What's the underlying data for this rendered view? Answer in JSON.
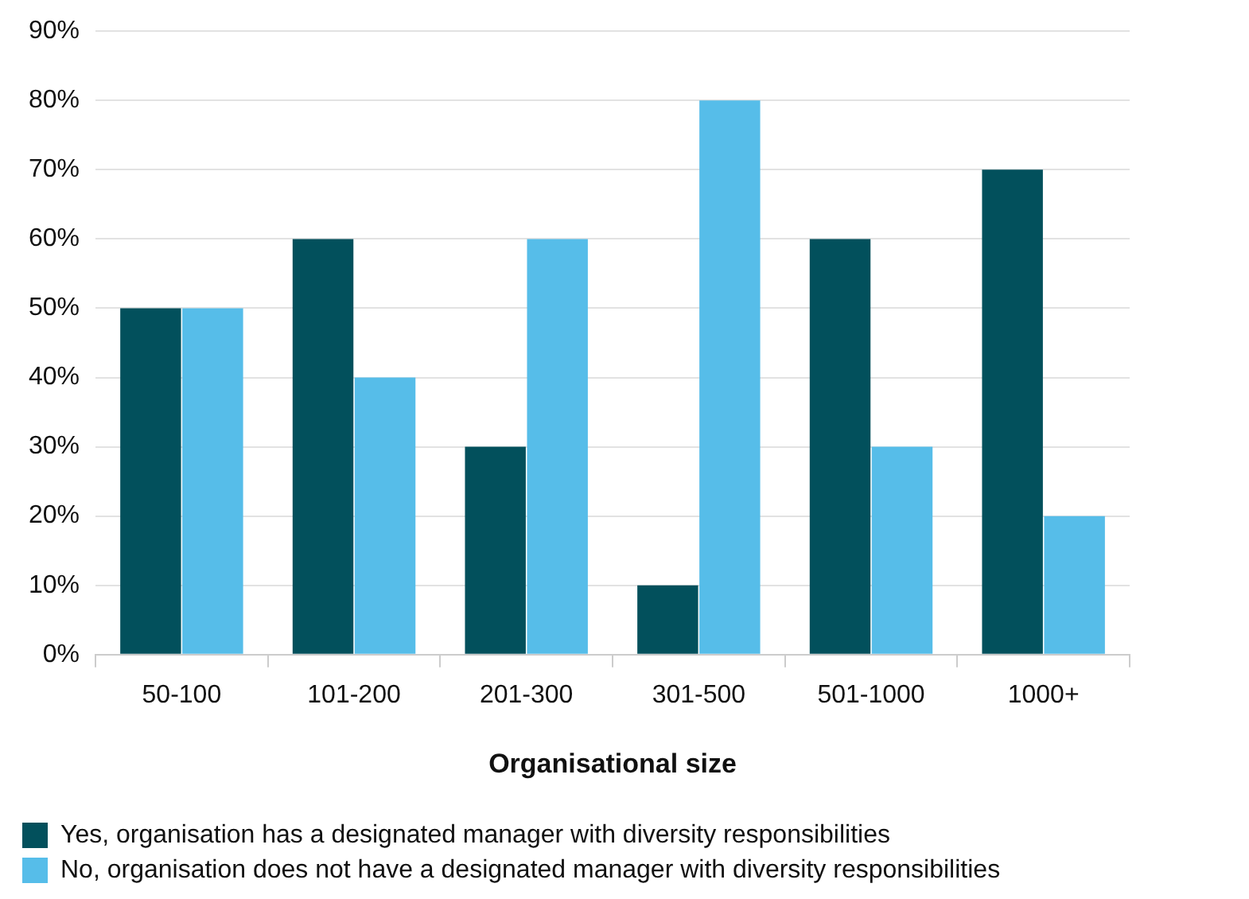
{
  "chart_data": {
    "type": "bar",
    "xlabel": "Organisational size",
    "categories": [
      "50-100",
      "101-200",
      "201-300",
      "301-500",
      "501-1000",
      "1000+"
    ],
    "series": [
      {
        "name": "Yes, organisation has a designated manager with diversity responsibilities",
        "color": "#02505c",
        "values": [
          50,
          60,
          30,
          10,
          60,
          70
        ]
      },
      {
        "name": "No, organisation does not have a designated manager with diversity responsibilities",
        "color": "#56bde9",
        "values": [
          50,
          40,
          60,
          80,
          30,
          20
        ]
      }
    ],
    "ylim": [
      0,
      90
    ],
    "yticks": [
      {
        "value": 0,
        "label": "0%"
      },
      {
        "value": 10,
        "label": "10%"
      },
      {
        "value": 20,
        "label": "20%"
      },
      {
        "value": 30,
        "label": "30%"
      },
      {
        "value": 40,
        "label": "40%"
      },
      {
        "value": 50,
        "label": "50%"
      },
      {
        "value": 60,
        "label": "60%"
      },
      {
        "value": 70,
        "label": "70%"
      },
      {
        "value": 80,
        "label": "80%"
      },
      {
        "value": 90,
        "label": "90%"
      }
    ],
    "grid": "y",
    "legend": "bottom left"
  }
}
